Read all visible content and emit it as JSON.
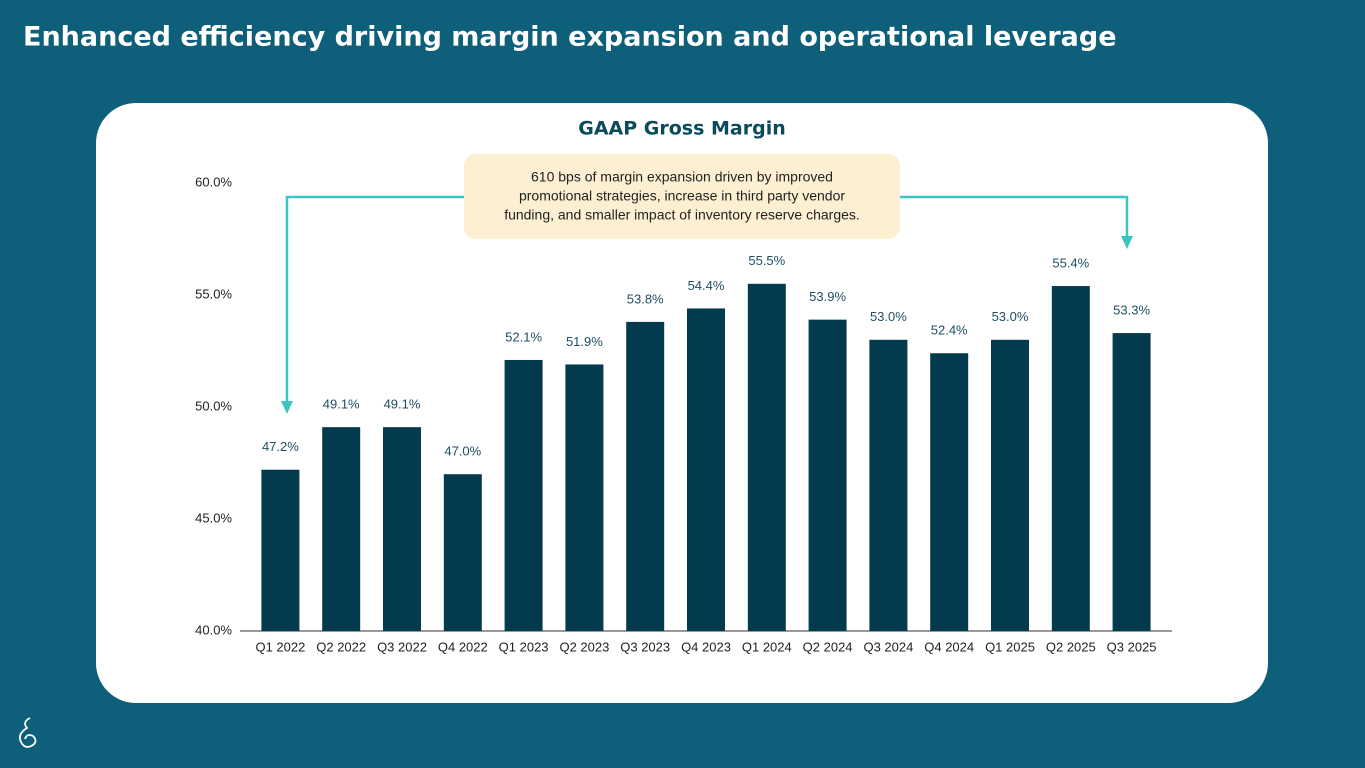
{
  "header": {
    "title": "Enhanced efficiency driving margin expansion and operational leverage"
  },
  "chart_data": {
    "type": "bar",
    "title": "GAAP Gross Margin",
    "annotation": [
      "610 bps of margin expansion driven by improved",
      "promotional strategies, increase in third party vendor",
      "funding, and smaller impact of inventory reserve charges."
    ],
    "categories": [
      "Q1 2022",
      "Q2 2022",
      "Q3 2022",
      "Q4 2022",
      "Q1 2023",
      "Q2 2023",
      "Q3 2023",
      "Q4 2023",
      "Q1 2024",
      "Q2 2024",
      "Q3 2024",
      "Q4 2024",
      "Q1 2025",
      "Q2 2025",
      "Q3 2025"
    ],
    "values": [
      47.2,
      49.1,
      49.1,
      47.0,
      52.1,
      51.9,
      53.8,
      54.4,
      55.5,
      53.9,
      53.0,
      52.4,
      53.0,
      55.4,
      53.3
    ],
    "value_labels": [
      "47.2%",
      "49.1%",
      "49.1%",
      "47.0%",
      "52.1%",
      "51.9%",
      "53.8%",
      "54.4%",
      "55.5%",
      "53.9%",
      "53.0%",
      "52.4%",
      "53.0%",
      "55.4%",
      "53.3%"
    ],
    "color": "#043a4d",
    "ylim": [
      40,
      60
    ],
    "yticks": [
      {
        "value": 40,
        "label": "40.0%"
      },
      {
        "value": 45,
        "label": "45.0%"
      },
      {
        "value": 50,
        "label": "50.0%"
      },
      {
        "value": 55,
        "label": "55.0%"
      },
      {
        "value": 60,
        "label": "60.0%"
      }
    ],
    "grid": false
  }
}
